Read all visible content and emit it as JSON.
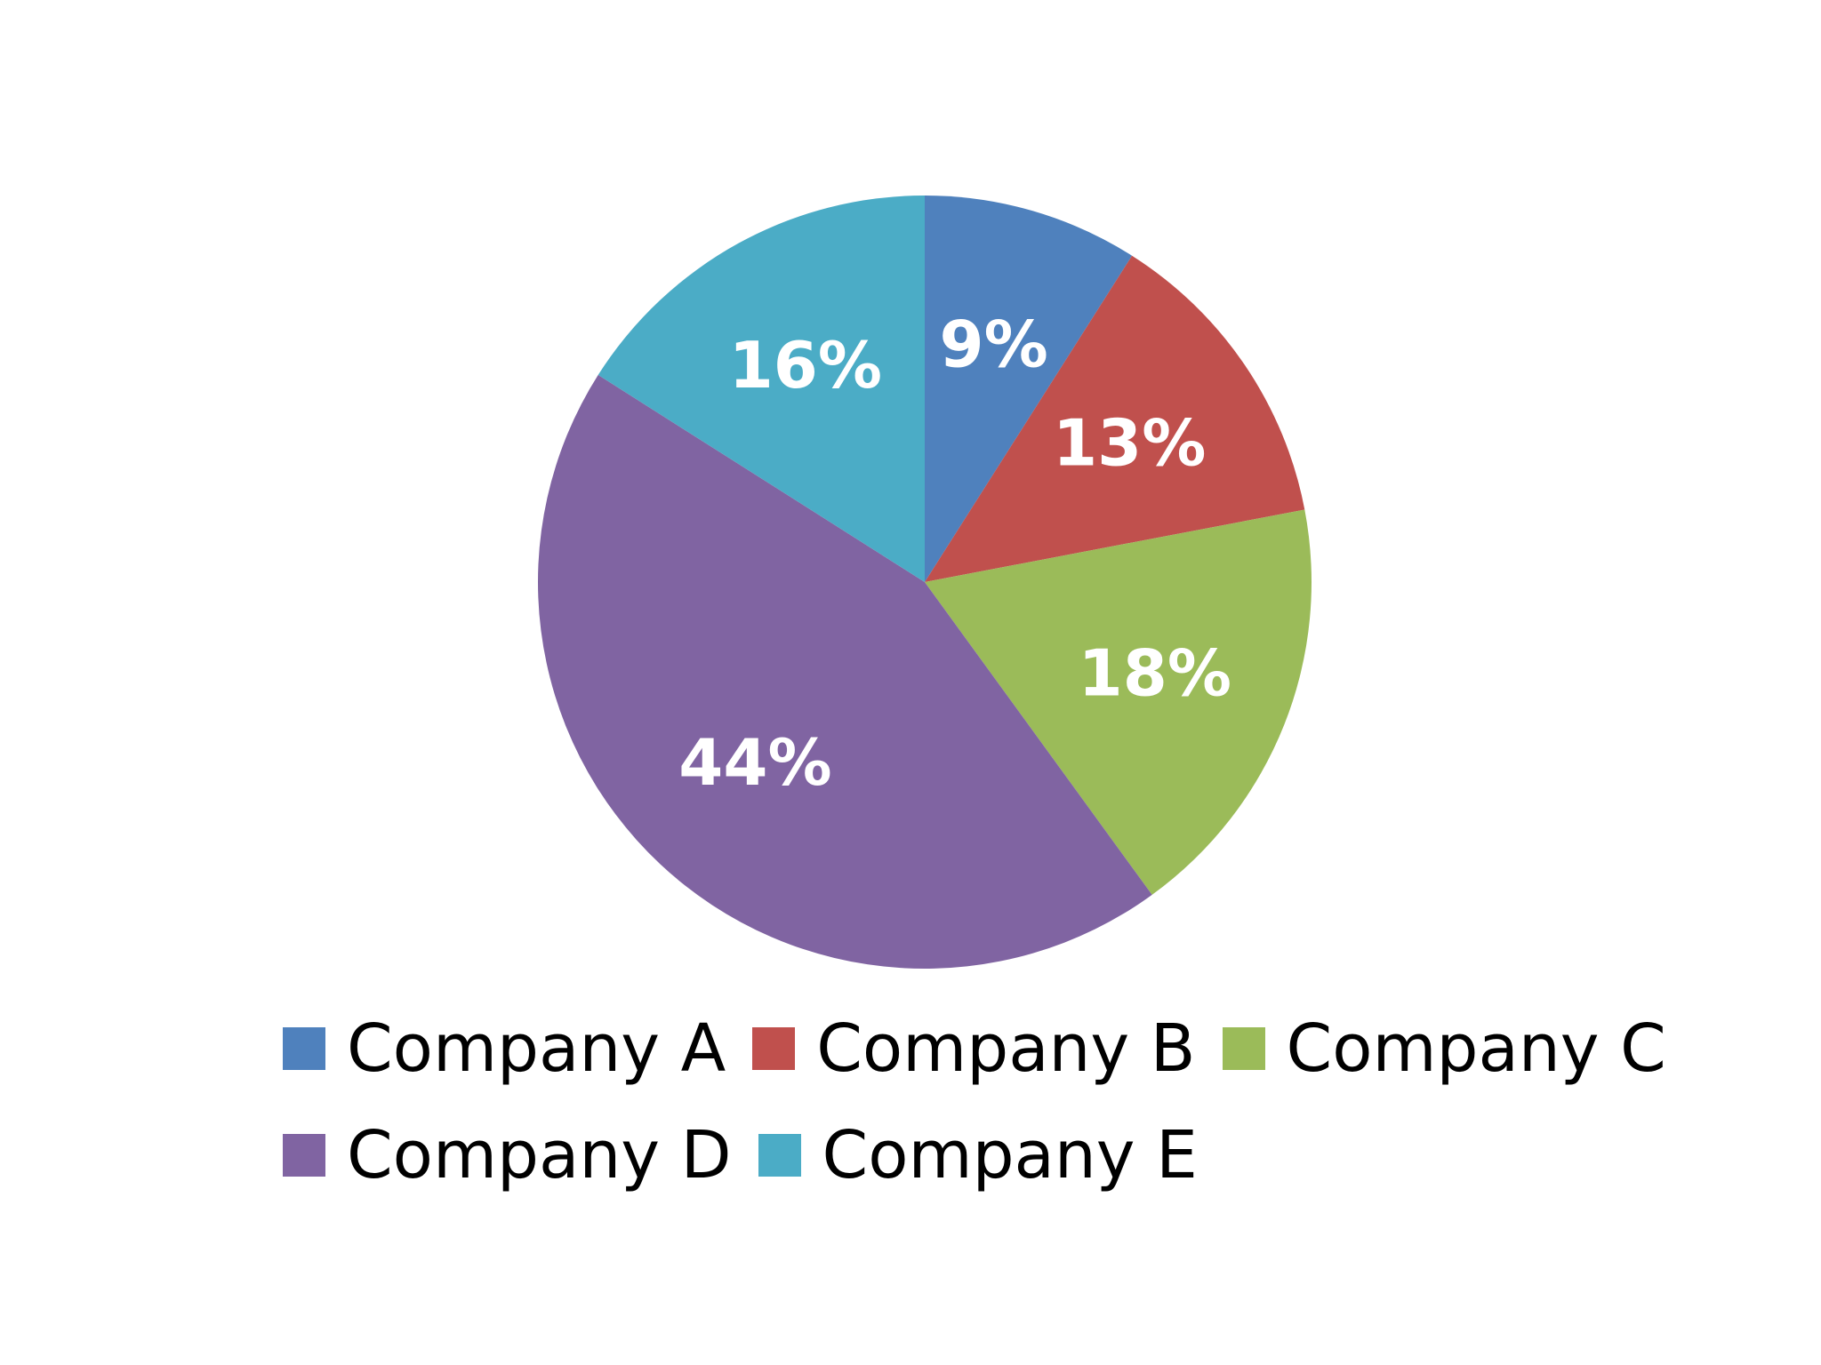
{
  "chart_data": {
    "type": "pie",
    "title": "",
    "slices": [
      {
        "name": "Company A",
        "value": 9,
        "label": "9%",
        "color": "#4F81BD"
      },
      {
        "name": "Company B",
        "value": 13,
        "label": "13%",
        "color": "#C0504D"
      },
      {
        "name": "Company C",
        "value": 18,
        "label": "18%",
        "color": "#9BBB59"
      },
      {
        "name": "Company D",
        "value": 44,
        "label": "44%",
        "color": "#8064A2"
      },
      {
        "name": "Company E",
        "value": 16,
        "label": "16%",
        "color": "#4BACC6"
      }
    ],
    "legend": {
      "position": "bottom",
      "rows": [
        [
          "Company A",
          "Company B",
          "Company C"
        ],
        [
          "Company D",
          "Company E"
        ]
      ]
    },
    "start_angle": "12 o'clock",
    "direction": "clockwise"
  }
}
